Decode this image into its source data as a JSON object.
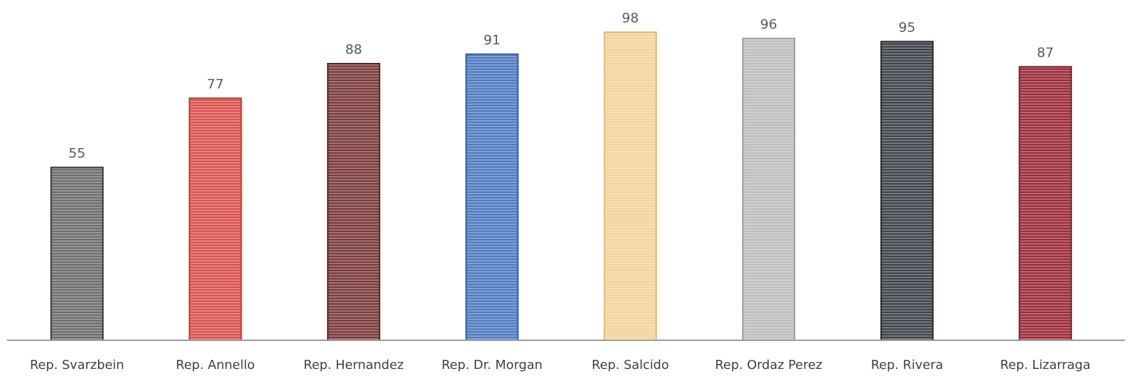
{
  "chart_data": {
    "type": "bar",
    "categories": [
      "Rep. Svarzbein",
      "Rep. Annello",
      "Rep. Hernandez",
      "Rep. Dr. Morgan",
      "Rep. Salcido",
      "Rep. Ordaz Perez",
      "Rep. Rivera",
      "Rep. Lizarraga"
    ],
    "values": [
      55,
      77,
      88,
      91,
      98,
      96,
      95,
      87
    ],
    "title": "",
    "xlabel": "",
    "ylabel": "",
    "ylim": [
      0,
      98
    ],
    "grid": false,
    "data_labels": true,
    "bar_colors": [
      "#6e6e6e",
      "#d9534f",
      "#7b3b3b",
      "#4f7bc0",
      "#f2d39b",
      "#bdbdbd",
      "#3f434a",
      "#9b2d3a"
    ],
    "bar_border_colors": [
      "#3a3a3a",
      "#c0392b",
      "#5a2424",
      "#2f5fa8",
      "#e2b96f",
      "#9e9e9e",
      "#222428",
      "#7a1b27"
    ]
  }
}
